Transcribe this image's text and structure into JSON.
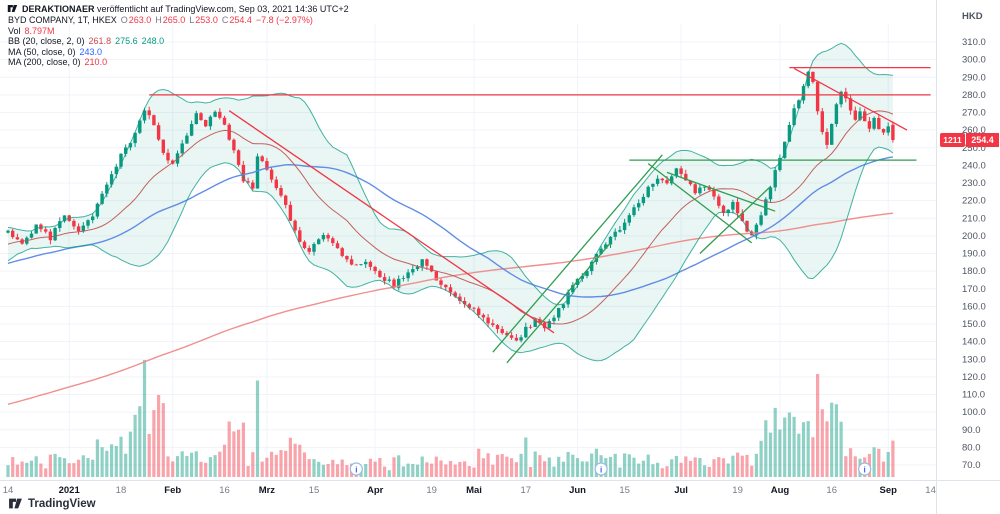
{
  "watermark": {
    "publisher": "DERAKTIONAER",
    "text": "veröffentlicht auf TradingView.com, Sep 03, 2021 14:36 UTC+2"
  },
  "legend": {
    "symbol_line": {
      "title": "BYD COMPANY, 1T, HKEX",
      "o_label": "O",
      "o": "263.0",
      "h_label": "H",
      "h": "265.0",
      "l_label": "L",
      "l": "253.0",
      "c_label": "C",
      "c": "254.4",
      "change": "−7.8 (−2.97%)"
    },
    "vol": {
      "label": "Vol",
      "value": "8.797M"
    },
    "bb": {
      "label": "BB (20, close, 2, 0)",
      "basis": "261.8",
      "upper": "275.6",
      "lower": "248.0"
    },
    "ma50": {
      "label": "MA (50, close, 0)",
      "value": "243.0"
    },
    "ma200": {
      "label": "MA (200, close, 0)",
      "value": "210.0"
    }
  },
  "price_axis": {
    "currency": "HKD",
    "labels": [
      "310.0",
      "300.0",
      "290.0",
      "280.0",
      "270.0",
      "260.0",
      "250.0",
      "240.0",
      "230.0",
      "220.0",
      "210.0",
      "200.0",
      "190.0",
      "180.0",
      "170.0",
      "160.0",
      "150.0",
      "140.0",
      "130.0",
      "120.0",
      "110.0",
      "100.0",
      "90.0",
      "80.0",
      "70.0"
    ],
    "price_tag": "254.4",
    "symbol_tag": "1211"
  },
  "time_axis": {
    "labels": [
      {
        "text": "14",
        "t": 0,
        "major": false
      },
      {
        "text": "2021",
        "t": 13,
        "major": true
      },
      {
        "text": "18",
        "t": 24,
        "major": false
      },
      {
        "text": "Feb",
        "t": 35,
        "major": true
      },
      {
        "text": "16",
        "t": 46,
        "major": false
      },
      {
        "text": "Mrz",
        "t": 55,
        "major": true
      },
      {
        "text": "15",
        "t": 65,
        "major": false
      },
      {
        "text": "Apr",
        "t": 78,
        "major": true
      },
      {
        "text": "19",
        "t": 90,
        "major": false
      },
      {
        "text": "Mai",
        "t": 99,
        "major": true
      },
      {
        "text": "17",
        "t": 110,
        "major": false
      },
      {
        "text": "Jun",
        "t": 121,
        "major": true
      },
      {
        "text": "15",
        "t": 131,
        "major": false
      },
      {
        "text": "Jul",
        "t": 143,
        "major": true
      },
      {
        "text": "19",
        "t": 155,
        "major": false
      },
      {
        "text": "Aug",
        "t": 164,
        "major": true
      },
      {
        "text": "16",
        "t": 175,
        "major": false
      },
      {
        "text": "Sep",
        "t": 187,
        "major": true
      },
      {
        "text": "14",
        "t": 196,
        "major": false
      }
    ]
  },
  "footer": {
    "brand": "TradingView"
  },
  "chart_data": {
    "type": "candlestick",
    "title": "BYD COMPANY, 1T, HKEX",
    "currency": "HKD",
    "interval": "1D",
    "price_range_visible": [
      65,
      316
    ],
    "axis_ticks": [
      70,
      80,
      90,
      100,
      110,
      120,
      130,
      140,
      150,
      160,
      170,
      180,
      190,
      200,
      210,
      220,
      230,
      240,
      250,
      260,
      270,
      280,
      290,
      300,
      310
    ],
    "last_candle": {
      "open": 263.0,
      "high": 265.0,
      "low": 253.0,
      "close": 254.4,
      "change": -7.8,
      "change_pct": -2.97
    },
    "volume_last_label": "8.797M",
    "indicators": {
      "bollinger": {
        "params": "20, close, 2, 0",
        "basis": 261.8,
        "upper": 275.6,
        "lower": 248.0
      },
      "ma50": {
        "params": "50, close, 0",
        "value": 243.0
      },
      "ma200": {
        "params": "200, close, 0",
        "value": 210.0
      }
    },
    "close_keypoints": [
      [
        -210,
        55
      ],
      [
        -192,
        50
      ],
      [
        -175,
        57
      ],
      [
        -160,
        54
      ],
      [
        -145,
        62
      ],
      [
        -130,
        68
      ],
      [
        -115,
        74
      ],
      [
        -100,
        80
      ],
      [
        -88,
        92
      ],
      [
        -75,
        103
      ],
      [
        -62,
        118
      ],
      [
        -50,
        160
      ],
      [
        -40,
        175
      ],
      [
        -30,
        188
      ],
      [
        -22,
        178
      ],
      [
        -15,
        193
      ],
      [
        -8,
        197
      ],
      [
        -3,
        200
      ],
      [
        0,
        203
      ],
      [
        3,
        196
      ],
      [
        6,
        205
      ],
      [
        9,
        199
      ],
      [
        12,
        213
      ],
      [
        15,
        202
      ],
      [
        18,
        212
      ],
      [
        21,
        228
      ],
      [
        24,
        245
      ],
      [
        27,
        258
      ],
      [
        29,
        272
      ],
      [
        31,
        263
      ],
      [
        33,
        246
      ],
      [
        35,
        240
      ],
      [
        38,
        258
      ],
      [
        40,
        271
      ],
      [
        42,
        262
      ],
      [
        44,
        272
      ],
      [
        46,
        263
      ],
      [
        48,
        247
      ],
      [
        50,
        232
      ],
      [
        52,
        228
      ],
      [
        53,
        246
      ],
      [
        55,
        238
      ],
      [
        58,
        222
      ],
      [
        60,
        210
      ],
      [
        62,
        198
      ],
      [
        64,
        191
      ],
      [
        67,
        200
      ],
      [
        70,
        192
      ],
      [
        73,
        183
      ],
      [
        76,
        186
      ],
      [
        79,
        178
      ],
      [
        82,
        172
      ],
      [
        85,
        180
      ],
      [
        88,
        186
      ],
      [
        91,
        176
      ],
      [
        94,
        169
      ],
      [
        97,
        162
      ],
      [
        100,
        156
      ],
      [
        103,
        149
      ],
      [
        106,
        144
      ],
      [
        108,
        141
      ],
      [
        110,
        147
      ],
      [
        112,
        152
      ],
      [
        114,
        148
      ],
      [
        116,
        155
      ],
      [
        118,
        162
      ],
      [
        120,
        171
      ],
      [
        122,
        178
      ],
      [
        124,
        185
      ],
      [
        126,
        192
      ],
      [
        128,
        198
      ],
      [
        130,
        204
      ],
      [
        132,
        212
      ],
      [
        134,
        219
      ],
      [
        136,
        228
      ],
      [
        138,
        234
      ],
      [
        140,
        230
      ],
      [
        142,
        238
      ],
      [
        144,
        232
      ],
      [
        146,
        224
      ],
      [
        148,
        229
      ],
      [
        150,
        221
      ],
      [
        152,
        214
      ],
      [
        154,
        218
      ],
      [
        156,
        208
      ],
      [
        158,
        200
      ],
      [
        160,
        213
      ],
      [
        161,
        222
      ],
      [
        163,
        236
      ],
      [
        165,
        252
      ],
      [
        167,
        272
      ],
      [
        169,
        284
      ],
      [
        170,
        292
      ],
      [
        171,
        286
      ],
      [
        172,
        272
      ],
      [
        173,
        260
      ],
      [
        174,
        252
      ],
      [
        175,
        262
      ],
      [
        176,
        274
      ],
      [
        177,
        282
      ],
      [
        178,
        277
      ],
      [
        179,
        270
      ],
      [
        180,
        266
      ],
      [
        181,
        272
      ],
      [
        182,
        266
      ],
      [
        183,
        262
      ],
      [
        184,
        266
      ],
      [
        185,
        262
      ],
      [
        186,
        258
      ],
      [
        187,
        262.2
      ],
      [
        188,
        254.4
      ]
    ],
    "drawings": [
      {
        "type": "hline",
        "price": 280,
        "t1": 30,
        "t2": 196,
        "color": "#f23645"
      },
      {
        "type": "hline",
        "price": 295.5,
        "t1": 166,
        "t2": 196,
        "color": "#f23645"
      },
      {
        "type": "trend",
        "p1": [
          47,
          271
        ],
        "p2": [
          116,
          145
        ],
        "color": "#f23645"
      },
      {
        "type": "trend",
        "p1": [
          167,
          295
        ],
        "p2": [
          191,
          260
        ],
        "color": "#f23645"
      },
      {
        "type": "trend",
        "p1": [
          103,
          134
        ],
        "p2": [
          139,
          246
        ],
        "color": "#2e9e4f"
      },
      {
        "type": "trend",
        "p1": [
          106,
          128
        ],
        "p2": [
          128,
          196
        ],
        "color": "#2e9e4f"
      },
      {
        "type": "hline",
        "price": 243,
        "t1": 132,
        "t2": 193,
        "color": "#2e9e4f"
      },
      {
        "type": "trend",
        "p1": [
          136,
          241
        ],
        "p2": [
          158,
          196
        ],
        "color": "#2e9e4f"
      },
      {
        "type": "trend",
        "p1": [
          140,
          236
        ],
        "p2": [
          163,
          214
        ],
        "color": "#2e9e4f"
      },
      {
        "type": "trend",
        "p1": [
          147,
          190
        ],
        "p2": [
          162,
          228
        ],
        "color": "#2e9e4f"
      }
    ],
    "event_markers_t": [
      74,
      126,
      182
    ],
    "volume_profile": [
      [
        15,
        25,
        1.4
      ],
      [
        26,
        33,
        2.6
      ],
      [
        44,
        53,
        1.7
      ],
      [
        58,
        64,
        1.3
      ],
      [
        100,
        113,
        1.5
      ],
      [
        120,
        132,
        1.25
      ],
      [
        160,
        177,
        1.9
      ],
      [
        183,
        188,
        1.25
      ]
    ],
    "volume_max_t": 29,
    "colors": {
      "up": "#089981",
      "down": "#f23645",
      "bb_band": "#089981",
      "bb_fill": "rgba(8,153,129,0.09)",
      "bb_basis": "#c0504d",
      "ma50": "#5b87e5",
      "ma200": "#ef8a88",
      "grid": "#f0f3fa",
      "axis_text": "#4e5562",
      "axis_border": "#e0e3eb",
      "tag_bg": "#f23645"
    }
  }
}
